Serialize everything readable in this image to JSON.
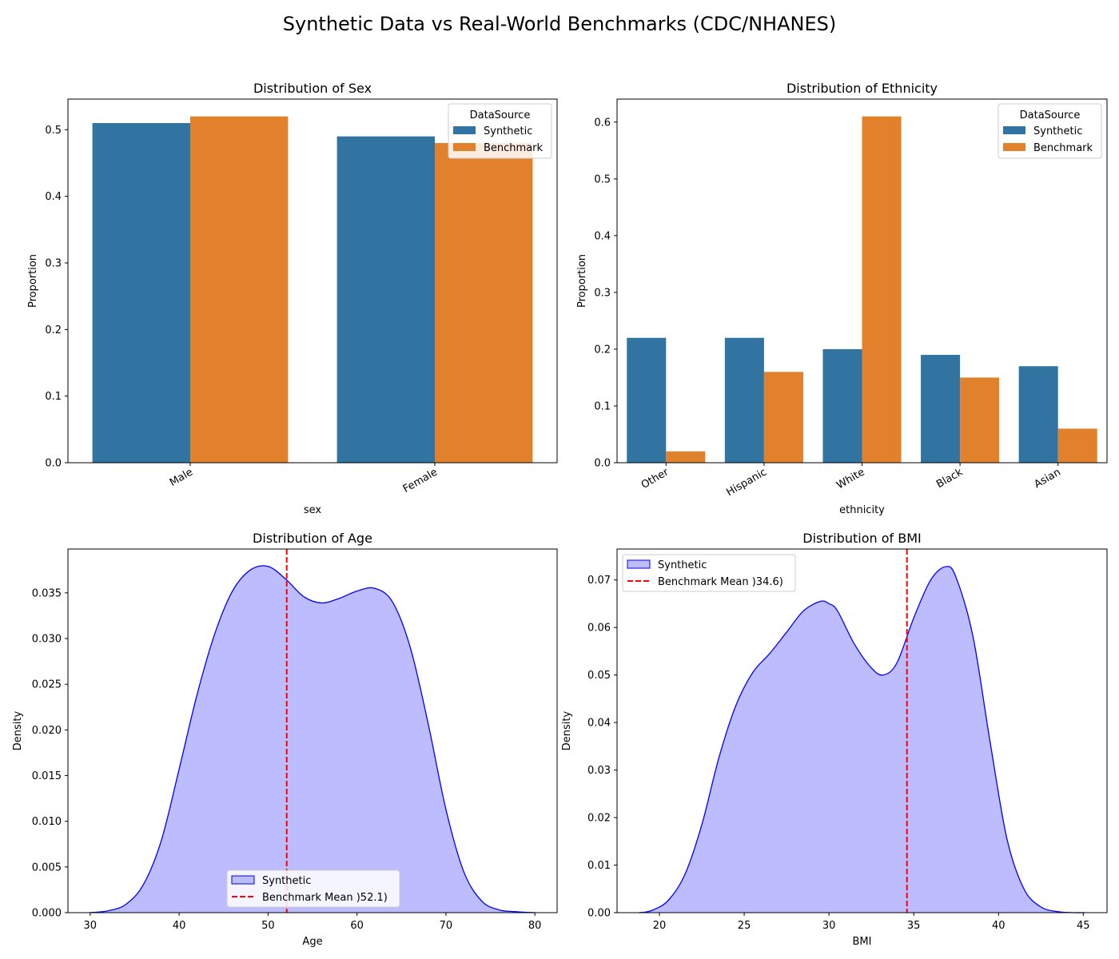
{
  "figure": {
    "suptitle": "Synthetic Data vs Real-World Benchmarks (CDC/NHANES)"
  },
  "chart_data": [
    {
      "type": "bar",
      "title": "Distribution of Sex",
      "xlabel": "sex",
      "ylabel": "Proportion",
      "categories": [
        "Male",
        "Female"
      ],
      "series": [
        {
          "name": "Synthetic",
          "values": [
            0.51,
            0.49
          ],
          "color": "#3274a1"
        },
        {
          "name": "Benchmark",
          "values": [
            0.52,
            0.48
          ],
          "color": "#e1812c"
        }
      ],
      "ylim": [
        0,
        0.546
      ],
      "yticks": [
        0.0,
        0.1,
        0.2,
        0.3,
        0.4,
        0.5
      ],
      "legend": {
        "title": "DataSource",
        "position": "upper right"
      }
    },
    {
      "type": "bar",
      "title": "Distribution of Ethnicity",
      "xlabel": "ethnicity",
      "ylabel": "Proportion",
      "categories": [
        "Other",
        "Hispanic",
        "White",
        "Black",
        "Asian"
      ],
      "series": [
        {
          "name": "Synthetic",
          "values": [
            0.22,
            0.22,
            0.2,
            0.19,
            0.17
          ],
          "color": "#3274a1"
        },
        {
          "name": "Benchmark",
          "values": [
            0.02,
            0.16,
            0.61,
            0.15,
            0.06
          ],
          "color": "#e1812c"
        }
      ],
      "ylim": [
        0,
        0.6405
      ],
      "yticks": [
        0.0,
        0.1,
        0.2,
        0.3,
        0.4,
        0.5,
        0.6
      ],
      "legend": {
        "title": "DataSource",
        "position": "upper right"
      }
    },
    {
      "type": "area",
      "title": "Distribution of Age",
      "xlabel": "Age",
      "ylabel": "Density",
      "x": [
        30,
        32,
        34,
        36,
        38,
        40,
        42,
        44,
        46,
        48,
        50,
        52,
        54,
        56,
        58,
        60,
        62,
        64,
        66,
        68,
        70,
        72,
        74,
        76,
        78,
        80
      ],
      "series": [
        {
          "name": "Synthetic",
          "values": [
            0.0,
            0.0002,
            0.0009,
            0.0031,
            0.0079,
            0.0157,
            0.0238,
            0.0305,
            0.0352,
            0.0375,
            0.0379,
            0.0365,
            0.0346,
            0.0339,
            0.0344,
            0.0352,
            0.0355,
            0.034,
            0.029,
            0.0207,
            0.0113,
            0.0045,
            0.0013,
            0.0003,
            0.0001,
            0.0
          ],
          "color": "#0000ff",
          "fill": "#bcbcff"
        }
      ],
      "reference_line": {
        "name": "Benchmark Mean )52.1)",
        "x": 52.1,
        "color": "#ff0000",
        "style": "dashed"
      },
      "xlim": [
        27.5,
        82.5
      ],
      "ylim": [
        0,
        0.0398
      ],
      "xticks": [
        30,
        40,
        50,
        60,
        70,
        80
      ],
      "yticks": [
        0.0,
        0.005,
        0.01,
        0.015,
        0.02,
        0.025,
        0.03,
        0.035
      ],
      "ytick_labels": [
        "0.000",
        "0.005",
        "0.010",
        "0.015",
        "0.020",
        "0.025",
        "0.030",
        "0.035"
      ],
      "legend": {
        "position": "lower center"
      }
    },
    {
      "type": "area",
      "title": "Distribution of BMI",
      "xlabel": "BMI",
      "ylabel": "Density",
      "x": [
        18.8,
        19.5,
        20.5,
        21.5,
        22.5,
        23.5,
        24.5,
        25.5,
        26.5,
        27.5,
        28.5,
        29.5,
        30.0,
        30.5,
        31.5,
        32.5,
        33.2,
        34.0,
        35.0,
        36.0,
        36.9,
        37.5,
        38.5,
        39.5,
        40.5,
        41.5,
        42.5,
        43.5,
        44.5,
        45.1
      ],
      "series": [
        {
          "name": "Synthetic",
          "values": [
            0.0,
            0.0004,
            0.0025,
            0.008,
            0.0185,
            0.0325,
            0.0435,
            0.0505,
            0.0545,
            0.059,
            0.0635,
            0.0655,
            0.065,
            0.0635,
            0.0565,
            0.0515,
            0.05,
            0.0525,
            0.062,
            0.07,
            0.0728,
            0.0705,
            0.058,
            0.036,
            0.0155,
            0.005,
            0.0012,
            0.0002,
            0.0,
            0.0
          ],
          "color": "#0000ff",
          "fill": "#bcbcff"
        }
      ],
      "reference_line": {
        "name": "Benchmark Mean )34.6)",
        "x": 34.6,
        "color": "#ff0000",
        "style": "dashed"
      },
      "xlim": [
        17.5,
        46.4
      ],
      "ylim": [
        0,
        0.0765
      ],
      "xticks": [
        20,
        25,
        30,
        35,
        40,
        45
      ],
      "yticks": [
        0.0,
        0.01,
        0.02,
        0.03,
        0.04,
        0.05,
        0.06,
        0.07
      ],
      "ytick_labels": [
        "0.00",
        "0.01",
        "0.02",
        "0.03",
        "0.04",
        "0.05",
        "0.06",
        "0.07"
      ],
      "legend": {
        "position": "upper left"
      }
    }
  ]
}
